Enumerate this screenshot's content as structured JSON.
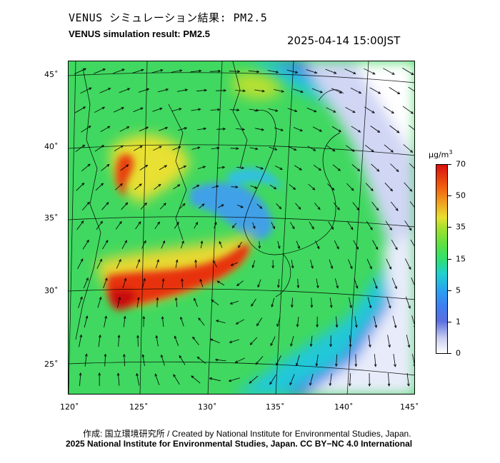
{
  "header": {
    "title_jp": "VENUS シミュレーション結果: PM2.5",
    "title_en": "VENUS simulation result: PM2.5",
    "timestamp": "2025-04-14 15:00JST"
  },
  "map": {
    "lat_labels": [
      "45˚",
      "40˚",
      "35˚",
      "30˚",
      "25˚"
    ],
    "lon_labels": [
      "120˚",
      "125˚",
      "130˚",
      "135˚",
      "140˚",
      "145˚"
    ]
  },
  "colorbar": {
    "unit_base": "μg/m",
    "unit_exp": "3",
    "labels": [
      "70",
      "50",
      "35",
      "15",
      "5",
      "1",
      "0"
    ],
    "colors": {
      "high": "#d81010",
      "mid": "#30e070",
      "low": "#3f7ff0",
      "zero": "#ffffff"
    }
  },
  "footer": {
    "credit": "作成: 国立環境研究所 / Created by National Institute for Environmental Studies, Japan.",
    "license": "2025 National Institute for Environmental Studies, Japan. CC BY−NC 4.0 International"
  }
}
